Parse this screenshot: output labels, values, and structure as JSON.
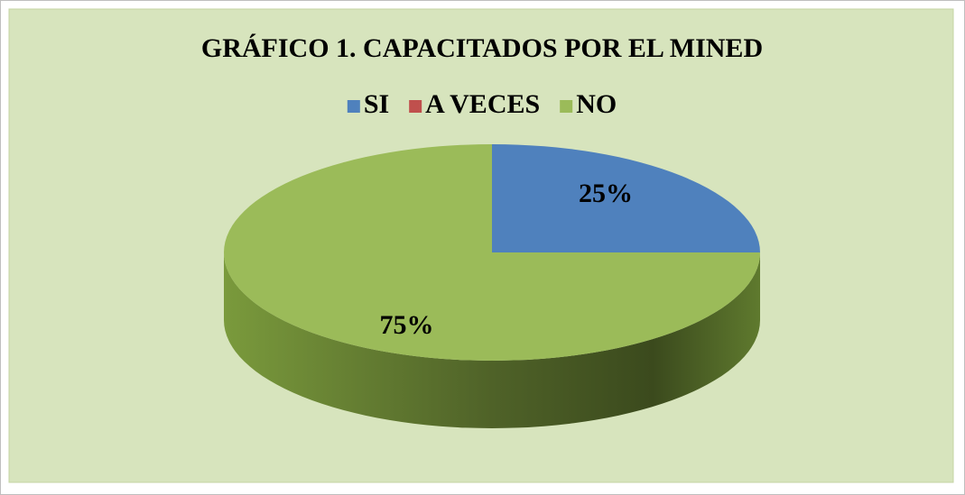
{
  "chart_data": {
    "type": "pie",
    "title": "GRÁFICO 1. CAPACITADOS POR EL MINED",
    "categories": [
      "SI",
      "A VECES",
      "NO"
    ],
    "values": [
      25,
      0,
      75
    ],
    "value_labels": [
      "25%",
      null,
      "75%"
    ],
    "colors": [
      "#4f81bd",
      "#c0504d",
      "#9bbb59"
    ],
    "legend": "top"
  }
}
